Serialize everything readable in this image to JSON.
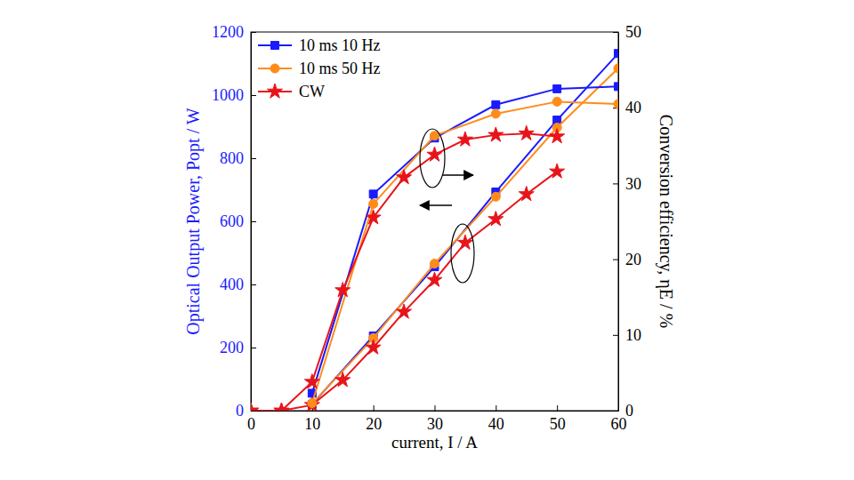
{
  "chart_data": {
    "type": "line",
    "x_label": "current, I / A",
    "y_label": "Optical Output Power, Popt / W",
    "y2_label": "Conversion efficiency, ηE / %",
    "xlim": [
      0,
      60
    ],
    "xticks": [
      0,
      10,
      20,
      30,
      40,
      50,
      60
    ],
    "ylim": [
      0,
      1200
    ],
    "yticks": [
      0,
      200,
      400,
      600,
      800,
      1000,
      1200
    ],
    "y2lim": [
      0,
      50
    ],
    "y2ticks": [
      0,
      10,
      20,
      30,
      40,
      50
    ],
    "legend": "upper left",
    "series": [
      {
        "name": "10 ms 10 Hz",
        "color": "#1a1aff",
        "marker": "square",
        "axis": "y",
        "x": [
          10,
          20,
          30,
          40,
          50,
          60
        ],
        "values": [
          20,
          237,
          456,
          693,
          921,
          1132
        ]
      },
      {
        "name": "10 ms 50 Hz",
        "color": "#ff8c1a",
        "marker": "circle",
        "axis": "y",
        "x": [
          10,
          20,
          30,
          40,
          50,
          60
        ],
        "values": [
          22,
          230,
          466,
          678,
          897,
          1085
        ]
      },
      {
        "name": "CW",
        "color": "#e8141b",
        "marker": "star",
        "axis": "y",
        "x": [
          0,
          5,
          10,
          15,
          20,
          25,
          30,
          35,
          40,
          45,
          50
        ],
        "values": [
          0,
          0,
          18,
          97,
          200,
          313,
          414,
          532,
          607,
          686,
          758
        ]
      },
      {
        "name": "10 ms 10 Hz",
        "color": "#1a1aff",
        "marker": "square",
        "axis": "y2",
        "x": [
          10,
          20,
          30,
          40,
          50,
          60
        ],
        "values": [
          2.3,
          28.6,
          36.0,
          40.4,
          42.5,
          42.8
        ]
      },
      {
        "name": "10 ms 50 Hz",
        "color": "#ff8c1a",
        "marker": "circle",
        "axis": "y2",
        "x": [
          10,
          20,
          30,
          40,
          50,
          60
        ],
        "values": [
          1.0,
          27.3,
          36.3,
          39.2,
          40.8,
          40.5
        ]
      },
      {
        "name": "CW",
        "color": "#e8141b",
        "marker": "star",
        "axis": "y2",
        "x": [
          0,
          5,
          10,
          15,
          20,
          25,
          30,
          35,
          40,
          45,
          50
        ],
        "values": [
          0,
          0,
          3.8,
          15.9,
          25.5,
          30.8,
          33.8,
          35.8,
          36.4,
          36.6,
          36.2
        ]
      }
    ]
  }
}
